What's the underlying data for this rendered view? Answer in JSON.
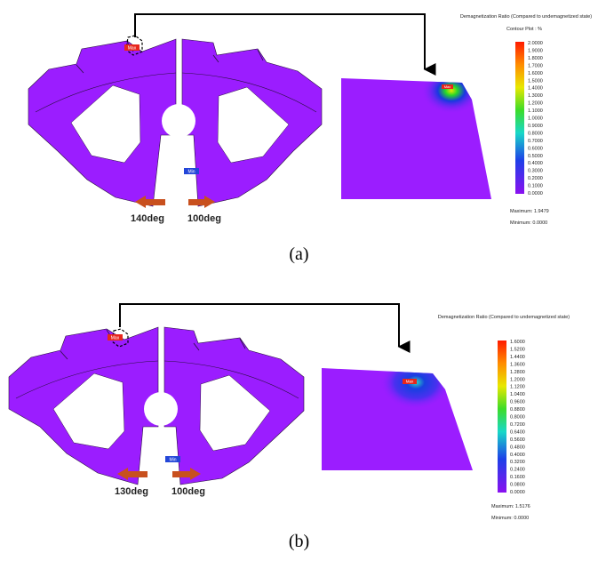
{
  "panel_a": {
    "legend_title": "Demagnetization Ratio (Compared to undemagnetized state)",
    "legend_subtitle": "Contour Plot : %",
    "ticks": [
      "2.0000",
      "1.9000",
      "1.8000",
      "1.7000",
      "1.6000",
      "1.5000",
      "1.4000",
      "1.3000",
      "1.2000",
      "1.1000",
      "1.0000",
      "0.9000",
      "0.8000",
      "0.7000",
      "0.6000",
      "0.5000",
      "0.4000",
      "0.3000",
      "0.2000",
      "0.1000",
      "0.0000"
    ],
    "maximum": "Maximum: 1.9479",
    "minimum": "Minimum: 0.0000",
    "arrow_left_label": "140deg",
    "arrow_right_label": "100deg",
    "max_tag": "Max",
    "min_tag": "Min",
    "zoom_tag": "Max",
    "caption": "(a)"
  },
  "panel_b": {
    "legend_title": "Demagnetization Ratio (Compared to undemagnetized state)",
    "legend_subtitle": "Contour Plot : %",
    "ticks": [
      "1.6000",
      "1.5200",
      "1.4400",
      "1.3600",
      "1.2800",
      "1.2000",
      "1.1200",
      "1.0400",
      "0.9600",
      "0.8800",
      "0.8000",
      "0.7200",
      "0.6400",
      "0.5600",
      "0.4800",
      "0.4000",
      "0.3200",
      "0.2400",
      "0.1600",
      "0.0800",
      "0.0000"
    ],
    "maximum": "Maximum: 1.5176",
    "minimum": "Minimum: 0.0000",
    "arrow_left_label": "130deg",
    "arrow_right_label": "100deg",
    "max_tag": "Max",
    "min_tag": "Min",
    "zoom_tag": "Max",
    "caption": "(b)"
  },
  "colors": {
    "core": "#9b1dff",
    "edge": "#2a1040",
    "arrow": "#c8501e",
    "max_tag": "#e8261c",
    "min_tag": "#2346d8"
  }
}
